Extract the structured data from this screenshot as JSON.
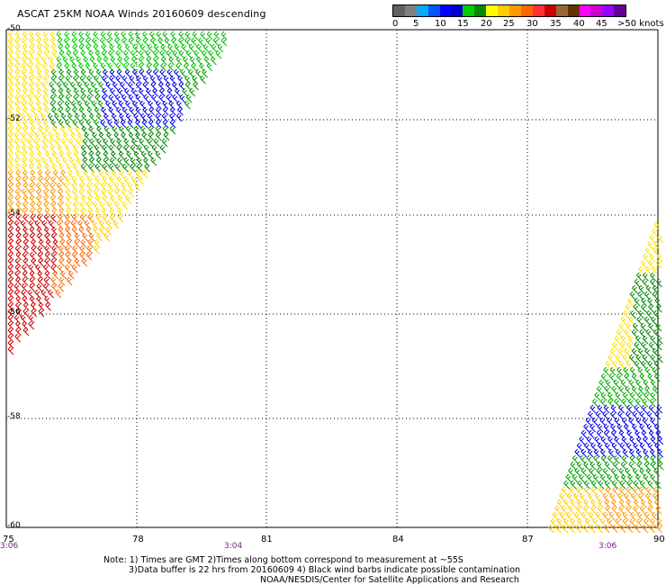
{
  "title": "ASCAT 25KM NOAA Winds 20160609 descending",
  "legend": {
    "colors": [
      "#606060",
      "#808080",
      "#00aaff",
      "#0055ff",
      "#0000ff",
      "#0000cc",
      "#00cc00",
      "#008800",
      "#ffff00",
      "#ffcc00",
      "#ff9900",
      "#ff6600",
      "#ff3333",
      "#cc0000",
      "#996633",
      "#663300",
      "#ff00ff",
      "#cc00cc",
      "#9900ff",
      "#660099"
    ],
    "labels": [
      "0",
      "5",
      "10",
      "15",
      "20",
      "25",
      "30",
      "35",
      "40",
      "45",
      ">50 knots"
    ]
  },
  "map": {
    "lat_labels": [
      "-50",
      "-52",
      "-54",
      "-56",
      "-58",
      "-60"
    ],
    "lon_labels": [
      "75",
      "78",
      "81",
      "84",
      "87",
      "90"
    ],
    "times": [
      "3:06",
      "3:04",
      "3:06"
    ]
  },
  "notes": {
    "line1": "Note: 1) Times are GMT 2)Times along bottom correspond to measurement at ~55S",
    "line2": "3)Data buffer is 22 hrs from 20160609 4) Black wind barbs indicate possible contamination",
    "line3": "NOAA/NESDIS/Center for Satellite Applications and Research"
  }
}
